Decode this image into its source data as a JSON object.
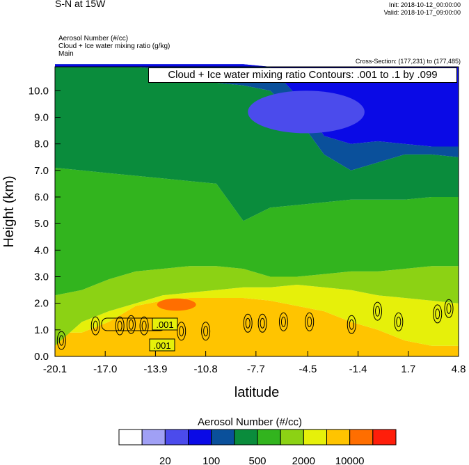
{
  "header": {
    "title": "S-N at 15W",
    "init": "Init: 2018-10-12_00:00:00",
    "valid": "Valid: 2018-10-17_09:00:00",
    "field_lines": [
      "Aerosol Number   (#/cc)",
      "Cloud + Ice water mixing ratio   (g/kg)",
      "Main"
    ],
    "cross_section": "Cross-Section: (177,231) to (177,485)"
  },
  "chart_data": {
    "type": "heatmap",
    "contour_overlay_label": "Cloud + Ice water mixing ratio Contours: .001 to .1 by .099",
    "contour_value_labels": [
      ".001",
      ".001"
    ],
    "xlabel": "latitude",
    "ylabel": "Height (km)",
    "x_ticks": [
      "-20.1",
      "-17.0",
      "-13.9",
      "-10.8",
      "-7.7",
      "-4.5",
      "-1.4",
      "1.7",
      "4.8"
    ],
    "y_ticks": [
      "0.0",
      "1.0",
      "2.0",
      "3.0",
      "4.0",
      "5.0",
      "6.0",
      "7.0",
      "8.0",
      "9.0",
      "10.0"
    ],
    "xlim": [
      -20.1,
      4.8
    ],
    "ylim": [
      0,
      10.9
    ],
    "colorbar": {
      "title": "Aerosol Number  (#/cc)",
      "colors": [
        "#ffffff",
        "#a0a0f5",
        "#4b4bec",
        "#0a0ae6",
        "#0a509b",
        "#0a8c3c",
        "#32b41e",
        "#8cd214",
        "#e6f00a",
        "#ffc400",
        "#ff6e00",
        "#ff1e0a"
      ],
      "labels": [
        "20",
        "100",
        "500",
        "2000",
        "10000"
      ]
    },
    "bands_km": {
      "orange_top": [
        0.9,
        0.9,
        1.3,
        1.9,
        2.1,
        2.2,
        2.2,
        2.2,
        2.1,
        1.9,
        1.7,
        1.3,
        1.0,
        0.6,
        0.4,
        0.4
      ],
      "yellow_top": [
        0.4,
        1.3,
        1.7,
        2.0,
        2.3,
        2.4,
        2.5,
        2.6,
        2.6,
        2.7,
        2.6,
        2.5,
        2.3,
        2.2,
        2.1,
        2.0
      ],
      "yellowgreen_top": [
        2.3,
        2.5,
        2.9,
        3.2,
        3.3,
        3.4,
        3.4,
        3.3,
        3.0,
        3.0,
        3.1,
        3.2,
        3.2,
        3.3,
        3.4,
        3.4
      ],
      "darkgreen_bottom": [
        7.1,
        7.0,
        6.9,
        6.8,
        6.7,
        6.6,
        6.5,
        5.1,
        5.6,
        5.7,
        5.8,
        5.9,
        5.9,
        5.9,
        6.0,
        6.0
      ],
      "midblue_bottom": [
        11.0,
        11.0,
        11.0,
        10.9,
        10.8,
        10.6,
        10.3,
        10.2,
        10.0,
        9.0,
        7.6,
        7.0,
        7.3,
        7.6,
        7.6,
        7.5
      ],
      "blue_bottom": [
        11.0,
        11.0,
        11.0,
        11.0,
        11.0,
        11.0,
        11.0,
        11.0,
        10.9,
        9.8,
        8.3,
        8.0,
        8.1,
        8.0,
        7.9,
        7.9
      ],
      "lightblue_blob_km": {
        "x": [
          -8.2,
          -1.0
        ],
        "y": [
          8.4,
          10.0
        ]
      },
      "red_blob_km": {
        "x": [
          -13.8,
          -11.4
        ],
        "y": [
          1.72,
          2.18
        ]
      }
    },
    "contour_cells_km": [
      {
        "x": -17.6,
        "y": 1.15
      },
      {
        "x": -16.1,
        "y": 1.15
      },
      {
        "x": -15.4,
        "y": 1.2
      },
      {
        "x": -14.6,
        "y": 1.15
      },
      {
        "x": -12.3,
        "y": 0.95
      },
      {
        "x": -10.8,
        "y": 0.95
      },
      {
        "x": -8.2,
        "y": 1.25
      },
      {
        "x": -7.3,
        "y": 1.25
      },
      {
        "x": -6.0,
        "y": 1.3
      },
      {
        "x": -4.4,
        "y": 1.3
      },
      {
        "x": -1.8,
        "y": 1.2
      },
      {
        "x": -0.2,
        "y": 1.7
      },
      {
        "x": 1.1,
        "y": 1.3
      },
      {
        "x": 3.5,
        "y": 1.6
      },
      {
        "x": 4.2,
        "y": 1.8
      },
      {
        "x": -19.7,
        "y": 0.6
      }
    ]
  }
}
